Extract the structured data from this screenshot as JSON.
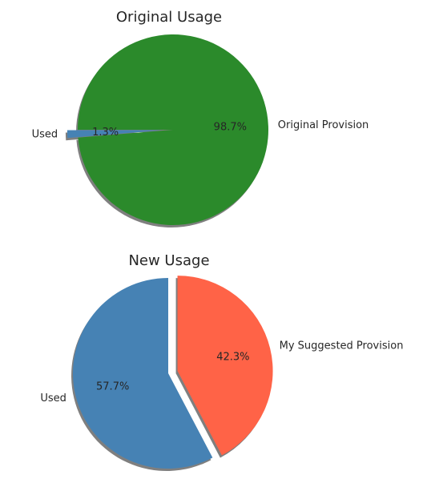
{
  "chart_data": [
    {
      "type": "pie",
      "title": "Original Usage",
      "categories": [
        "Used",
        "Original Provision"
      ],
      "values": [
        1.3,
        98.7
      ],
      "percent_labels": [
        "1.3%",
        "98.7%"
      ],
      "colors": [
        "#4682b4",
        "#2b8a2b"
      ],
      "exploded": "Used",
      "shadow": true
    },
    {
      "type": "pie",
      "title": "New Usage",
      "categories": [
        "Used",
        "My Suggested Provision"
      ],
      "values": [
        57.7,
        42.3
      ],
      "percent_labels": [
        "57.7%",
        "42.3%"
      ],
      "colors": [
        "#4682b4",
        "#ff6347"
      ],
      "exploded": "My Suggested Provision",
      "shadow": true
    }
  ]
}
